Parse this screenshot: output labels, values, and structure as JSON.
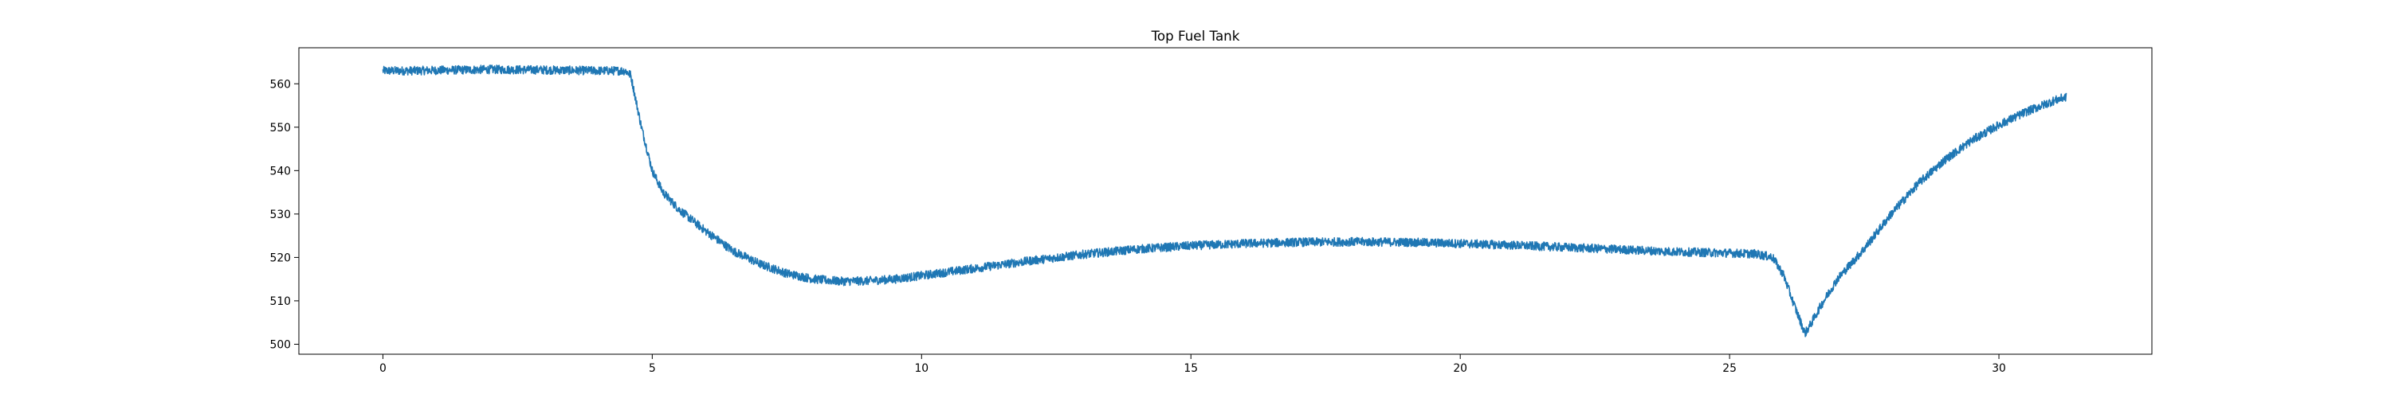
{
  "chart_data": {
    "type": "line",
    "title": "Top Fuel Tank",
    "xlabel": "",
    "ylabel": "",
    "xlim": [
      -1.56,
      32.84
    ],
    "ylim": [
      497.7,
      568.3
    ],
    "x_ticks": [
      0,
      5,
      10,
      15,
      20,
      25,
      30
    ],
    "y_ticks": [
      500,
      510,
      520,
      530,
      540,
      550,
      560
    ],
    "grid": false,
    "legend": "none",
    "series": [
      {
        "color": "#1f77b4",
        "noise_amplitude": 1.0,
        "points": [
          [
            0.0,
            563.0
          ],
          [
            0.5,
            563.0
          ],
          [
            1.0,
            563.1
          ],
          [
            2.0,
            563.3
          ],
          [
            3.0,
            563.2
          ],
          [
            4.0,
            563.0
          ],
          [
            4.5,
            563.0
          ],
          [
            4.6,
            562.0
          ],
          [
            4.7,
            556.0
          ],
          [
            4.8,
            550.0
          ],
          [
            4.9,
            545.0
          ],
          [
            5.0,
            540.0
          ],
          [
            5.2,
            535.0
          ],
          [
            5.5,
            531.0
          ],
          [
            6.0,
            526.0
          ],
          [
            6.5,
            521.5
          ],
          [
            7.0,
            518.5
          ],
          [
            7.5,
            516.3
          ],
          [
            8.0,
            515.0
          ],
          [
            8.5,
            514.5
          ],
          [
            9.0,
            514.6
          ],
          [
            9.5,
            515.0
          ],
          [
            10.0,
            515.8
          ],
          [
            11.0,
            517.5
          ],
          [
            12.0,
            519.2
          ],
          [
            13.0,
            520.7
          ],
          [
            14.0,
            521.9
          ],
          [
            15.0,
            522.7
          ],
          [
            16.0,
            523.2
          ],
          [
            17.0,
            523.5
          ],
          [
            18.0,
            523.6
          ],
          [
            19.0,
            523.5
          ],
          [
            20.0,
            523.2
          ],
          [
            21.0,
            522.8
          ],
          [
            22.0,
            522.3
          ],
          [
            23.0,
            521.8
          ],
          [
            24.0,
            521.3
          ],
          [
            25.0,
            521.0
          ],
          [
            25.5,
            520.8
          ],
          [
            25.8,
            520.0
          ],
          [
            26.0,
            516.0
          ],
          [
            26.2,
            509.0
          ],
          [
            26.4,
            502.5
          ],
          [
            26.5,
            504.5
          ],
          [
            26.7,
            509.0
          ],
          [
            27.0,
            515.0
          ],
          [
            27.5,
            522.0
          ],
          [
            28.0,
            530.0
          ],
          [
            28.5,
            537.0
          ],
          [
            29.0,
            542.5
          ],
          [
            29.5,
            547.0
          ],
          [
            30.0,
            550.5
          ],
          [
            30.5,
            553.5
          ],
          [
            31.0,
            556.0
          ],
          [
            31.25,
            557.0
          ]
        ]
      }
    ]
  }
}
